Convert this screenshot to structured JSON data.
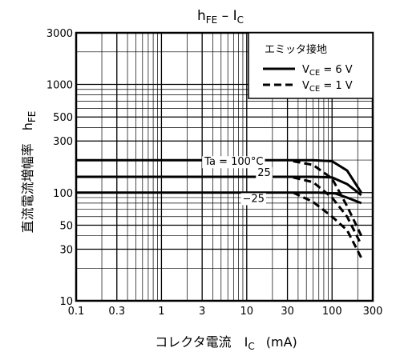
{
  "chart_data": {
    "type": "line",
    "title": "hFE – IC",
    "title_main": "h",
    "title_main_sub": "FE",
    "title_sep": " – I",
    "title_sep_sub": "C",
    "xlabel": "コレクタ電流　I",
    "xlabel_sub": "C",
    "xlabel_unit": "(mA)",
    "ylabel": "直流電流増幅率　h",
    "ylabel_sub": "FE",
    "x_scale": "log",
    "y_scale": "log",
    "xlim": [
      0.1,
      300
    ],
    "ylim": [
      10,
      3000
    ],
    "x_ticks": [
      {
        "value": 0.1,
        "label": "0.1"
      },
      {
        "value": 0.3,
        "label": "0.3"
      },
      {
        "value": 1,
        "label": "1"
      },
      {
        "value": 3,
        "label": "3"
      },
      {
        "value": 10,
        "label": "10"
      },
      {
        "value": 30,
        "label": "30"
      },
      {
        "value": 100,
        "label": "100"
      },
      {
        "value": 300,
        "label": "300"
      }
    ],
    "y_ticks": [
      {
        "value": 10,
        "label": "10"
      },
      {
        "value": 30,
        "label": "30"
      },
      {
        "value": 50,
        "label": "50"
      },
      {
        "value": 100,
        "label": "100"
      },
      {
        "value": 300,
        "label": "300"
      },
      {
        "value": 500,
        "label": "500"
      },
      {
        "value": 1000,
        "label": "1000"
      },
      {
        "value": 3000,
        "label": "3000"
      }
    ],
    "grid": true,
    "legend": {
      "position": "top-right",
      "title": "エミッタ接地",
      "entries": [
        {
          "prefix": "V",
          "sub": "CE",
          "suffix": " = 6 V",
          "style": "solid"
        },
        {
          "prefix": "V",
          "sub": "CE",
          "suffix": " = 1 V",
          "style": "dashed"
        }
      ]
    },
    "annotations": [
      {
        "text": "Ta = 100°C",
        "x": 3.2,
        "y": 180,
        "anchor": "start"
      },
      {
        "text": "25",
        "x": 16,
        "y": 142,
        "anchor": "middle"
      },
      {
        "text": "−25",
        "x": 12,
        "y": 82,
        "anchor": "middle"
      }
    ],
    "series": [
      {
        "name": "Ta = 100°C",
        "vce": "6 V",
        "style": "solid",
        "points": [
          [
            0.1,
            199
          ],
          [
            60,
            199
          ],
          [
            100,
            195
          ],
          [
            150,
            160
          ],
          [
            220,
            100
          ]
        ]
      },
      {
        "name": "25",
        "vce": "6 V",
        "style": "solid",
        "points": [
          [
            0.1,
            140
          ],
          [
            60,
            140
          ],
          [
            100,
            138
          ],
          [
            150,
            120
          ],
          [
            220,
            95
          ]
        ]
      },
      {
        "name": "−25",
        "vce": "6 V",
        "style": "solid",
        "points": [
          [
            0.1,
            100
          ],
          [
            70,
            100
          ],
          [
            110,
            98
          ],
          [
            150,
            90
          ],
          [
            220,
            80
          ]
        ]
      },
      {
        "name": "Ta = 100°C",
        "vce": "1 V",
        "style": "dashed",
        "points": [
          [
            35,
            195
          ],
          [
            60,
            180
          ],
          [
            100,
            135
          ],
          [
            150,
            75
          ],
          [
            220,
            40
          ]
        ]
      },
      {
        "name": "25",
        "vce": "1 V",
        "style": "dashed",
        "points": [
          [
            35,
            138
          ],
          [
            60,
            125
          ],
          [
            100,
            90
          ],
          [
            150,
            60
          ],
          [
            220,
            33
          ]
        ]
      },
      {
        "name": "−25",
        "vce": "1 V",
        "style": "dashed",
        "points": [
          [
            35,
            100
          ],
          [
            60,
            82
          ],
          [
            100,
            60
          ],
          [
            150,
            45
          ],
          [
            220,
            25
          ]
        ]
      }
    ]
  }
}
